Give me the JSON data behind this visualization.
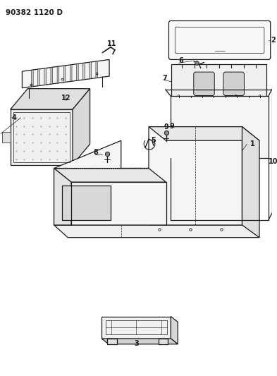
{
  "title": "90382 1120 D",
  "bg": "#ffffff",
  "lc": "#1a1a1a",
  "figsize": [
    3.93,
    5.33
  ],
  "dpi": 100
}
